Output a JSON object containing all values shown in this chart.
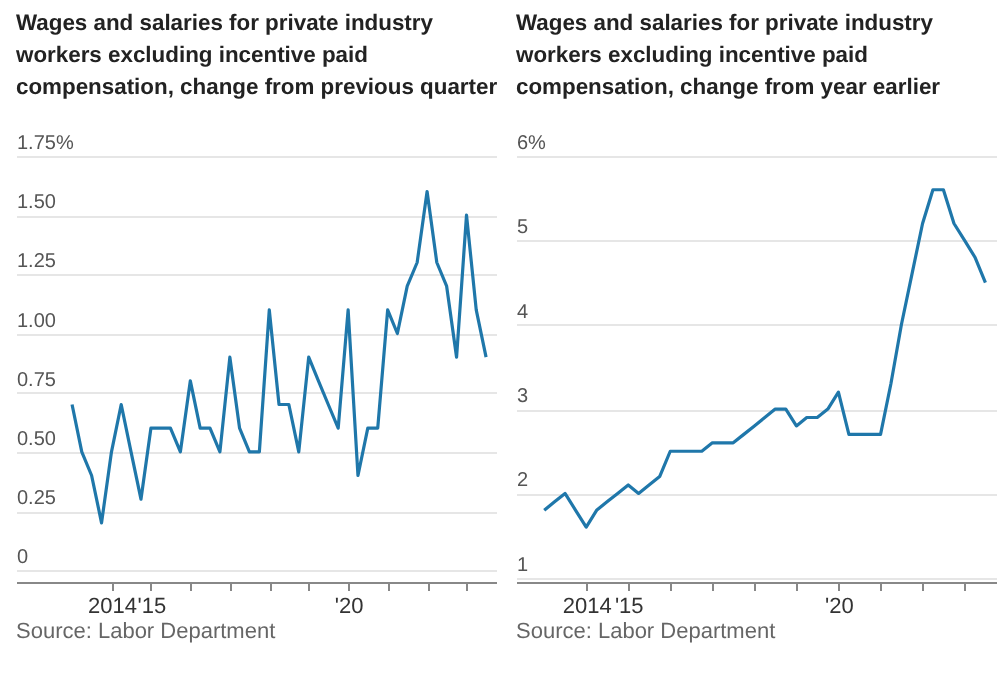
{
  "chart_data": [
    {
      "type": "line",
      "title": "Wages and salaries for private industry workers excluding incentive paid compensation, change from previous quarter",
      "annotations": [
        "Source: Labor Department"
      ],
      "x": [
        "2013-01",
        "2013-04",
        "2013-07",
        "2013-10",
        "2014-01",
        "2014-04",
        "2014-07",
        "2014-10",
        "2015-01",
        "2015-04",
        "2015-07",
        "2015-10",
        "2016-01",
        "2016-04",
        "2016-07",
        "2016-10",
        "2017-01",
        "2017-04",
        "2017-07",
        "2017-10",
        "2018-01",
        "2018-04",
        "2018-07",
        "2018-10",
        "2019-01",
        "2019-04",
        "2019-07",
        "2019-10",
        "2020-01",
        "2020-04",
        "2020-07",
        "2020-10",
        "2021-01",
        "2021-04",
        "2021-07",
        "2021-10",
        "2022-01",
        "2022-04",
        "2022-07",
        "2022-10",
        "2023-01",
        "2023-04",
        "2023-07"
      ],
      "series": [
        {
          "color": "#1f77aa",
          "values": [
            0.7,
            0.5,
            0.4,
            0.2,
            0.5,
            0.7,
            0.5,
            0.3,
            0.6,
            0.6,
            0.6,
            0.5,
            0.8,
            0.6,
            0.6,
            0.5,
            0.9,
            0.6,
            0.5,
            0.5,
            1.1,
            0.7,
            0.7,
            0.5,
            0.9,
            0.8,
            0.7,
            0.6,
            1.1,
            0.4,
            0.6,
            0.6,
            1.1,
            1.0,
            1.2,
            1.3,
            1.6,
            1.3,
            1.2,
            0.9,
            1.5,
            1.1,
            0.9
          ]
        }
      ],
      "xlim": [
        "2011-08",
        "2023-10"
      ],
      "xticks": [
        {
          "value": "2014-01",
          "label": "2014"
        },
        {
          "value": "2015-01",
          "label": "'15"
        },
        {
          "value": "2016-01",
          "label": null
        },
        {
          "value": "2017-01",
          "label": null
        },
        {
          "value": "2018-01",
          "label": null
        },
        {
          "value": "2019-01",
          "label": null
        },
        {
          "value": "2020-01",
          "label": "'20"
        },
        {
          "value": "2021-01",
          "label": null
        },
        {
          "value": "2022-01",
          "label": null
        },
        {
          "value": "2023-01",
          "label": null
        }
      ],
      "ylim": [
        -0.05,
        1.75
      ],
      "yticks": [
        0,
        0.25,
        {
          "value": 0.5,
          "label": "0.50"
        },
        0.75,
        {
          "value": 1,
          "label": "1.00"
        },
        1.25,
        {
          "value": 1.5,
          "label": "1.50"
        },
        {
          "value": 1.75,
          "label": "1.75%"
        }
      ],
      "grid": "y",
      "marker": "none",
      "line_style": "solid"
    },
    {
      "type": "line",
      "title": "Wages and salaries for private industry workers excluding incentive paid compensation, change from year earlier",
      "annotations": [
        "Source: Labor Department"
      ],
      "x": [
        "2013-01",
        "2013-04",
        "2013-07",
        "2013-10",
        "2014-01",
        "2014-04",
        "2014-07",
        "2014-10",
        "2015-01",
        "2015-04",
        "2015-07",
        "2015-10",
        "2016-01",
        "2016-04",
        "2016-07",
        "2016-10",
        "2017-01",
        "2017-04",
        "2017-07",
        "2017-10",
        "2018-01",
        "2018-04",
        "2018-07",
        "2018-10",
        "2019-01",
        "2019-04",
        "2019-07",
        "2019-10",
        "2020-01",
        "2020-04",
        "2020-07",
        "2020-10",
        "2021-01",
        "2021-04",
        "2021-07",
        "2021-10",
        "2022-01",
        "2022-04",
        "2022-07",
        "2022-10",
        "2023-01",
        "2023-04",
        "2023-07"
      ],
      "series": [
        {
          "color": "#1f77aa",
          "values": [
            1.8,
            1.9,
            2.0,
            1.8,
            1.6,
            1.8,
            1.9,
            2.0,
            2.1,
            2.0,
            2.1,
            2.2,
            2.5,
            2.5,
            2.5,
            2.5,
            2.6,
            2.6,
            2.6,
            2.7,
            2.8,
            2.9,
            3.0,
            3.0,
            2.8,
            2.9,
            2.9,
            3.0,
            3.2,
            2.7,
            2.7,
            2.7,
            2.7,
            3.3,
            4.0,
            4.6,
            5.2,
            5.6,
            5.6,
            5.2,
            5.0,
            4.8,
            4.5
          ]
        }
      ],
      "xlim": [
        "2012-05",
        "2023-10"
      ],
      "xticks": [
        {
          "value": "2014-01",
          "label": "2014"
        },
        {
          "value": "2015-01",
          "label": "'15"
        },
        {
          "value": "2016-01",
          "label": null
        },
        {
          "value": "2017-01",
          "label": null
        },
        {
          "value": "2018-01",
          "label": null
        },
        {
          "value": "2019-01",
          "label": null
        },
        {
          "value": "2020-01",
          "label": "'20"
        },
        {
          "value": "2021-01",
          "label": null
        },
        {
          "value": "2022-01",
          "label": null
        },
        {
          "value": "2023-01",
          "label": null
        }
      ],
      "ylim": [
        0.95,
        6
      ],
      "yticks": [
        1,
        2,
        3,
        4,
        5,
        {
          "value": 6,
          "label": "6%"
        }
      ],
      "grid": "y",
      "marker": "none",
      "line_style": "solid"
    }
  ]
}
